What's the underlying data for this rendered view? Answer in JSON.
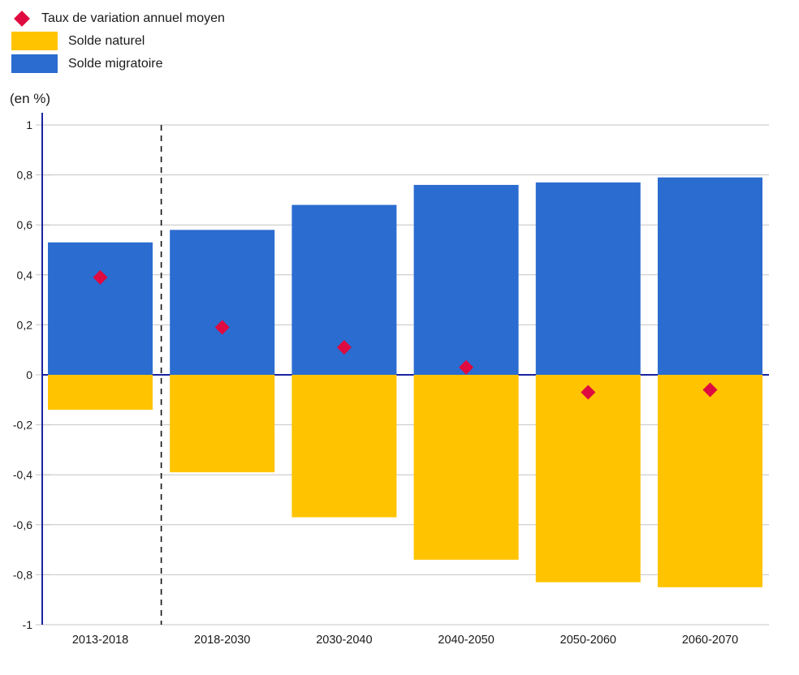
{
  "chart_data": {
    "type": "bar",
    "subtype": "diverging-stacked-with-scatter",
    "categories": [
      "2013-2018",
      "2018-2030",
      "2030-2040",
      "2040-2050",
      "2050-2060",
      "2060-2070"
    ],
    "series": [
      {
        "name": "Taux de variation annuel moyen",
        "type": "scatter",
        "marker": "diamond",
        "color": "#df0a3f",
        "values": [
          0.39,
          0.19,
          0.11,
          0.03,
          -0.07,
          -0.06
        ]
      },
      {
        "name": "Solde naturel",
        "type": "bar",
        "color": "#ffc300",
        "values": [
          -0.14,
          -0.39,
          -0.57,
          -0.74,
          -0.83,
          -0.85
        ]
      },
      {
        "name": "Solde migratoire",
        "type": "bar",
        "color": "#2b6cd0",
        "values": [
          0.53,
          0.58,
          0.68,
          0.76,
          0.77,
          0.79
        ]
      }
    ],
    "title": "",
    "xlabel": "",
    "ylabel": "(en %)",
    "ylim": [
      -1,
      1
    ],
    "yticks": [
      {
        "value": 1,
        "label": "1"
      },
      {
        "value": 0.8,
        "label": "0,8"
      },
      {
        "value": 0.6,
        "label": "0,6"
      },
      {
        "value": 0.4,
        "label": "0,4"
      },
      {
        "value": 0.2,
        "label": "0,2"
      },
      {
        "value": 0,
        "label": "0"
      },
      {
        "value": -0.2,
        "label": "-0,2"
      },
      {
        "value": -0.4,
        "label": "-0,4"
      },
      {
        "value": -0.6,
        "label": "-0,6"
      },
      {
        "value": -0.8,
        "label": "-0,8"
      },
      {
        "value": -1,
        "label": "-1"
      }
    ],
    "grid": true,
    "legend_position": "top-left",
    "annotations": {
      "dashed_vline_between": [
        "2013-2018",
        "2018-2030"
      ]
    },
    "colors": {
      "y_axis_line": "#1a23a0",
      "zero_line": "#1a23a0",
      "gridline": "#c4c4c4",
      "dashed_line": "#111111",
      "tick_text": "#1a1a1a"
    }
  }
}
